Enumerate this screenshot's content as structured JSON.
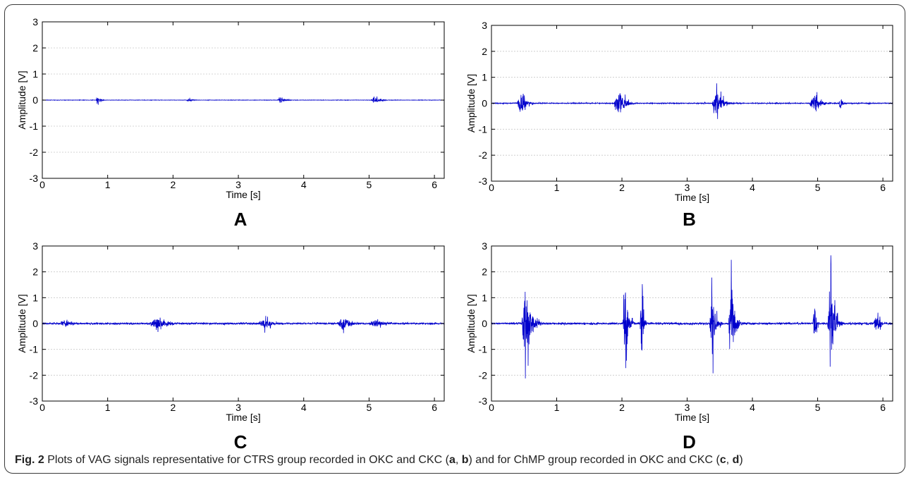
{
  "figure": {
    "caption_label": "Fig. 2",
    "caption_text": " Plots of VAG signals representative for CTRS group recorded in OKC and CKC (",
    "caption_parts": [
      "a",
      ", ",
      "b",
      ") and for ChMP group recorded in OKC and CKC (",
      "c",
      ", ",
      "d",
      ")"
    ]
  },
  "colors": {
    "signal": "#0000cc",
    "axis": "#000000",
    "grid": "#c8c8c8"
  },
  "chart_data": [
    {
      "type": "line",
      "panel_label": "A",
      "xlabel": "Time [s]",
      "ylabel": "Amplitude [V]",
      "xlim": [
        0,
        6.15
      ],
      "ylim": [
        -3,
        3
      ],
      "xticks": [
        0,
        1,
        2,
        3,
        4,
        5,
        6
      ],
      "yticks": [
        3,
        2,
        1,
        0,
        -1,
        -2,
        -3
      ],
      "grid": "horizontal dashed",
      "series": [
        {
          "color": "#0000cc",
          "noise": 0.012,
          "bursts": [
            {
              "t": 0.85,
              "amp": 0.22,
              "dur": 0.15
            },
            {
              "t": 2.25,
              "amp": 0.1,
              "dur": 0.22
            },
            {
              "t": 3.65,
              "amp": 0.22,
              "dur": 0.22
            },
            {
              "t": 5.1,
              "amp": 0.2,
              "dur": 0.3
            }
          ]
        }
      ]
    },
    {
      "type": "line",
      "panel_label": "B",
      "xlabel": "Time [s]",
      "ylabel": "Amplitude [V]",
      "xlim": [
        0,
        6.15
      ],
      "ylim": [
        -3,
        3
      ],
      "xticks": [
        0,
        1,
        2,
        3,
        4,
        5,
        6
      ],
      "yticks": [
        3,
        2,
        1,
        0,
        -1,
        -2,
        -3
      ],
      "grid": "horizontal dashed",
      "series": [
        {
          "color": "#0000cc",
          "noise": 0.03,
          "bursts": [
            {
              "t": 0.45,
              "amp": 0.9,
              "dur": 0.25
            },
            {
              "t": 1.95,
              "amp": 1.1,
              "dur": 0.3
            },
            {
              "t": 3.45,
              "amp": 1.0,
              "dur": 0.3
            },
            {
              "t": 4.95,
              "amp": 0.7,
              "dur": 0.3
            },
            {
              "t": 5.35,
              "amp": 0.6,
              "dur": 0.1
            }
          ]
        }
      ]
    },
    {
      "type": "line",
      "panel_label": "C",
      "xlabel": "Time [s]",
      "ylabel": "Amplitude [V]",
      "xlim": [
        0,
        6.15
      ],
      "ylim": [
        -3,
        3
      ],
      "xticks": [
        0,
        1,
        2,
        3,
        4,
        5,
        6
      ],
      "yticks": [
        3,
        2,
        1,
        0,
        -1,
        -2,
        -3
      ],
      "grid": "horizontal dashed",
      "series": [
        {
          "color": "#0000cc",
          "noise": 0.05,
          "bursts": [
            {
              "t": 0.35,
              "amp": 0.25,
              "dur": 0.4
            },
            {
              "t": 1.75,
              "amp": 0.45,
              "dur": 0.5
            },
            {
              "t": 3.4,
              "amp": 0.4,
              "dur": 0.4
            },
            {
              "t": 4.6,
              "amp": 0.6,
              "dur": 0.35
            },
            {
              "t": 5.1,
              "amp": 0.3,
              "dur": 0.5
            }
          ]
        }
      ]
    },
    {
      "type": "line",
      "panel_label": "D",
      "xlabel": "Time [s]",
      "ylabel": "Amplitude [V]",
      "xlim": [
        0,
        6.15
      ],
      "ylim": [
        -3,
        3
      ],
      "xticks": [
        0,
        1,
        2,
        3,
        4,
        5,
        6
      ],
      "yticks": [
        3,
        2,
        1,
        0,
        -1,
        -2,
        -3
      ],
      "grid": "horizontal dashed",
      "series": [
        {
          "color": "#0000cc",
          "noise": 0.06,
          "bursts": [
            {
              "t": 0.52,
              "amp": 3.0,
              "dur": 0.25
            },
            {
              "t": 2.05,
              "amp": 3.0,
              "dur": 0.15
            },
            {
              "t": 2.3,
              "amp": 2.5,
              "dur": 0.1
            },
            {
              "t": 3.38,
              "amp": 3.0,
              "dur": 0.15
            },
            {
              "t": 3.68,
              "amp": 2.8,
              "dur": 0.2
            },
            {
              "t": 4.95,
              "amp": 1.5,
              "dur": 0.1
            },
            {
              "t": 5.2,
              "amp": 3.0,
              "dur": 0.2
            },
            {
              "t": 5.9,
              "amp": 0.7,
              "dur": 0.2
            }
          ]
        }
      ]
    }
  ]
}
